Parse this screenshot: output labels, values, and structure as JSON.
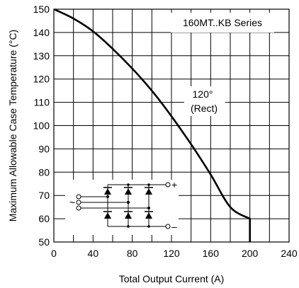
{
  "chart_data": {
    "type": "line",
    "title": "",
    "xlabel": "Total Output Current (A)",
    "ylabel": "Maximum Allowable Case Temperature (°C)",
    "xlim": [
      0,
      240
    ],
    "ylim": [
      50,
      150
    ],
    "x_ticks": [
      0,
      40,
      80,
      120,
      160,
      200,
      240
    ],
    "y_ticks": [
      50,
      60,
      70,
      80,
      90,
      100,
      110,
      120,
      130,
      140,
      150
    ],
    "x_tick_labels": [
      "0",
      "40",
      "80",
      "120",
      "160",
      "200",
      "240"
    ],
    "y_tick_labels": [
      "50",
      "60",
      "70",
      "80",
      "90",
      "100",
      "110",
      "120",
      "130",
      "140",
      "150"
    ],
    "grid": true,
    "series": [
      {
        "x": [
          0,
          20,
          40,
          60,
          80,
          100,
          120,
          140,
          160,
          180,
          200,
          200
        ],
        "y": [
          150,
          146,
          140.5,
          133,
          124.5,
          115,
          104,
          92,
          79,
          65,
          60,
          50
        ]
      }
    ],
    "annotations": {
      "series_label": "160MT..KB Series",
      "curve_label_line1": "120°",
      "curve_label_line2": "(Rect)",
      "tilde": "~",
      "plus": "+",
      "minus": "–"
    }
  }
}
